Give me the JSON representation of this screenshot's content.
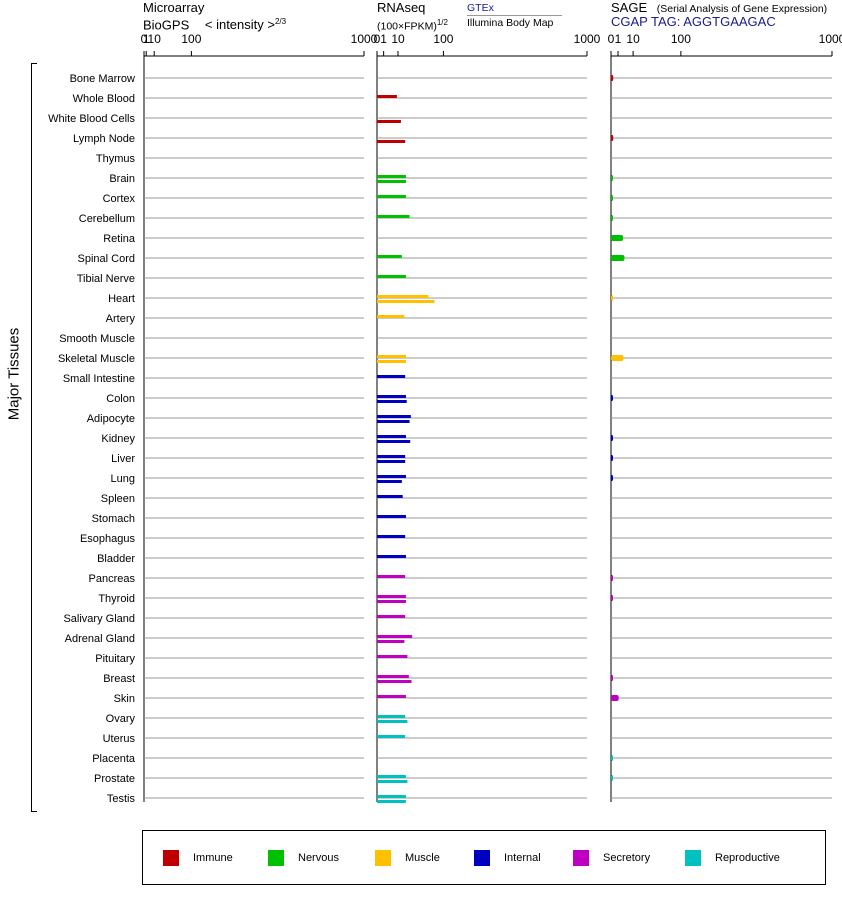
{
  "headers": {
    "microarray_line1": "Microarray",
    "microarray_line2": "BioGPS",
    "microarray_intensity": "< intensity >",
    "microarray_exponent": "2/3",
    "rnaseq_line1": "RNAseq",
    "rnaseq_units": "(100×FPKM)",
    "rnaseq_exponent": "1/2",
    "gtex_label": "GTEx",
    "illumina_label": "Illumina Body Map",
    "sage_title": "SAGE",
    "sage_subtitle": "(Serial Analysis of Gene Expression)",
    "sage_tag": "CGAP TAG: AGGTGAAGAC"
  },
  "group_label": "Major Tissues",
  "legend": {
    "items": [
      {
        "label": "Immune",
        "color": "#c00000"
      },
      {
        "label": "Nervous",
        "color": "#00c000"
      },
      {
        "label": "Muscle",
        "color": "#ffc000"
      },
      {
        "label": "Internal",
        "color": "#0000c0"
      },
      {
        "label": "Secretory",
        "color": "#c000c0"
      },
      {
        "label": "Reproductive",
        "color": "#00c0c0"
      }
    ]
  },
  "chart_data": {
    "type": "bar",
    "orientation": "horizontal",
    "panels": [
      {
        "id": "microarray",
        "scale": "power 2/3",
        "ticks": [
          "0",
          "1",
          "10",
          "100",
          "1000"
        ]
      },
      {
        "id": "rnaseq",
        "scale": "power 1/2",
        "ticks": [
          "0",
          "1",
          "10",
          "100",
          "1000"
        ],
        "series": [
          "GTEx",
          "Illumina Body Map"
        ]
      },
      {
        "id": "sage",
        "scale": "power 1/2",
        "ticks": [
          "0",
          "1",
          "10",
          "100",
          "1000"
        ]
      }
    ],
    "categories": [
      {
        "name": "Bone Marrow",
        "system": "Immune",
        "microarray": null,
        "gtex": null,
        "illumina": null,
        "sage": 0.1
      },
      {
        "name": "Whole Blood",
        "system": "Immune",
        "microarray": null,
        "gtex": 9,
        "illumina": null,
        "sage": null
      },
      {
        "name": "White Blood Cells",
        "system": "Immune",
        "microarray": null,
        "gtex": null,
        "illumina": 13,
        "sage": null
      },
      {
        "name": "Lymph Node",
        "system": "Immune",
        "microarray": null,
        "gtex": null,
        "illumina": 18,
        "sage": 0.1
      },
      {
        "name": "Thymus",
        "system": "Immune",
        "microarray": null,
        "gtex": null,
        "illumina": null,
        "sage": null
      },
      {
        "name": "Brain",
        "system": "Nervous",
        "microarray": null,
        "gtex": 19,
        "illumina": 19,
        "sage": 0.05
      },
      {
        "name": "Cortex",
        "system": "Nervous",
        "microarray": null,
        "gtex": 19,
        "illumina": null,
        "sage": 0.05
      },
      {
        "name": "Cerebellum",
        "system": "Nervous",
        "microarray": null,
        "gtex": 24,
        "illumina": null,
        "sage": 0.05
      },
      {
        "name": "Retina",
        "system": "Nervous",
        "microarray": null,
        "gtex": null,
        "illumina": null,
        "sage": 3
      },
      {
        "name": "Spinal Cord",
        "system": "Nervous",
        "microarray": null,
        "gtex": 14,
        "illumina": null,
        "sage": 3.7
      },
      {
        "name": "Tibial Nerve",
        "system": "Nervous",
        "microarray": null,
        "gtex": 19,
        "illumina": null,
        "sage": null
      },
      {
        "name": "Heart",
        "system": "Muscle",
        "microarray": null,
        "gtex": 60,
        "illumina": 75,
        "sage": 0.02
      },
      {
        "name": "Artery",
        "system": "Muscle",
        "microarray": null,
        "gtex": 17,
        "illumina": null,
        "sage": null
      },
      {
        "name": "Smooth Muscle",
        "system": "Muscle",
        "microarray": null,
        "gtex": null,
        "illumina": null,
        "sage": null
      },
      {
        "name": "Skeletal Muscle",
        "system": "Muscle",
        "microarray": null,
        "gtex": 19,
        "illumina": 19,
        "sage": 3.2
      },
      {
        "name": "Small Intestine",
        "system": "Internal",
        "microarray": null,
        "gtex": 18,
        "illumina": null,
        "sage": null
      },
      {
        "name": "Colon",
        "system": "Internal",
        "microarray": null,
        "gtex": 19,
        "illumina": 20,
        "sage": 0.05
      },
      {
        "name": "Adipocyte",
        "system": "Internal",
        "microarray": null,
        "gtex": 26,
        "illumina": 24,
        "sage": null
      },
      {
        "name": "Kidney",
        "system": "Internal",
        "microarray": null,
        "gtex": 19,
        "illumina": 25,
        "sage": 0.05
      },
      {
        "name": "Liver",
        "system": "Internal",
        "microarray": null,
        "gtex": 18,
        "illumina": 18,
        "sage": 0.05
      },
      {
        "name": "Lung",
        "system": "Internal",
        "microarray": null,
        "gtex": 19,
        "illumina": 14,
        "sage": 0.05
      },
      {
        "name": "Spleen",
        "system": "Internal",
        "microarray": null,
        "gtex": 15,
        "illumina": null,
        "sage": null
      },
      {
        "name": "Stomach",
        "system": "Internal",
        "microarray": null,
        "gtex": 19,
        "illumina": null,
        "sage": null
      },
      {
        "name": "Esophagus",
        "system": "Internal",
        "microarray": null,
        "gtex": 18,
        "illumina": null,
        "sage": null
      },
      {
        "name": "Bladder",
        "system": "Internal",
        "microarray": null,
        "gtex": 19,
        "illumina": null,
        "sage": null
      },
      {
        "name": "Pancreas",
        "system": "Secretory",
        "microarray": null,
        "gtex": 18,
        "illumina": null,
        "sage": 0.05
      },
      {
        "name": "Thyroid",
        "system": "Secretory",
        "microarray": null,
        "gtex": 19,
        "illumina": 19,
        "sage": 0.05
      },
      {
        "name": "Salivary Gland",
        "system": "Secretory",
        "microarray": null,
        "gtex": 18,
        "illumina": null,
        "sage": null
      },
      {
        "name": "Adrenal Gland",
        "system": "Secretory",
        "microarray": null,
        "gtex": 28,
        "illumina": 17,
        "sage": null
      },
      {
        "name": "Pituitary",
        "system": "Secretory",
        "microarray": null,
        "gtex": 21,
        "illumina": null,
        "sage": null
      },
      {
        "name": "Breast",
        "system": "Secretory",
        "microarray": null,
        "gtex": 23,
        "illumina": 27,
        "sage": 0.05
      },
      {
        "name": "Skin",
        "system": "Secretory",
        "microarray": null,
        "gtex": 19,
        "illumina": null,
        "sage": 1.2
      },
      {
        "name": "Ovary",
        "system": "Reproductive",
        "microarray": null,
        "gtex": 18,
        "illumina": 21,
        "sage": null
      },
      {
        "name": "Uterus",
        "system": "Reproductive",
        "microarray": null,
        "gtex": 18,
        "illumina": null,
        "sage": null
      },
      {
        "name": "Placenta",
        "system": "Reproductive",
        "microarray": null,
        "gtex": null,
        "illumina": null,
        "sage": 0.05
      },
      {
        "name": "Prostate",
        "system": "Reproductive",
        "microarray": null,
        "gtex": 19,
        "illumina": 21,
        "sage": 0.05
      },
      {
        "name": "Testis",
        "system": "Reproductive",
        "microarray": null,
        "gtex": 19,
        "illumina": 19,
        "sage": null
      }
    ]
  }
}
